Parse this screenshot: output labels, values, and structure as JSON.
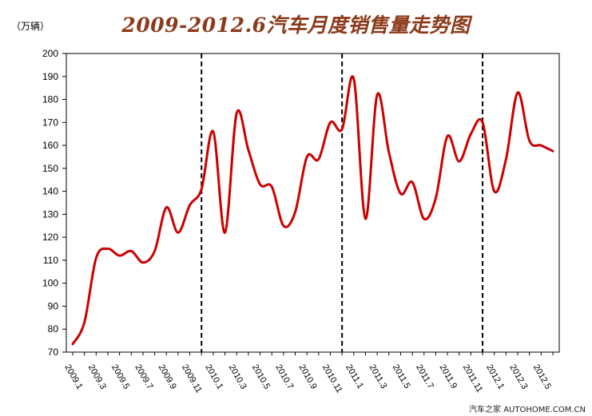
{
  "header": {
    "title": "2009-2012.6汽车月度销售量走势图",
    "unit": "（万辆）"
  },
  "footer": {
    "watermark": "汽车之家 AUTOHOME.COM.CN"
  },
  "chart_data": {
    "type": "line",
    "title": "2009-2012.6汽车月度销售量走势图",
    "ylabel": "（万辆）",
    "xlabel": "",
    "ylim": [
      70,
      200
    ],
    "yticks": [
      70,
      80,
      90,
      100,
      110,
      120,
      130,
      140,
      150,
      160,
      170,
      180,
      190,
      200
    ],
    "grid": false,
    "line_color": "#cc0000",
    "x": [
      "2009.1",
      "2009.2",
      "2009.3",
      "2009.4",
      "2009.5",
      "2009.6",
      "2009.7",
      "2009.8",
      "2009.9",
      "2009.10",
      "2009.11",
      "2009.12",
      "2010.1",
      "2010.2",
      "2010.3",
      "2010.4",
      "2010.5",
      "2010.6",
      "2010.7",
      "2010.8",
      "2010.9",
      "2010.10",
      "2010.11",
      "2010.12",
      "2011.1",
      "2011.2",
      "2011.3",
      "2011.4",
      "2011.5",
      "2011.6",
      "2011.7",
      "2011.8",
      "2011.9",
      "2011.10",
      "2011.11",
      "2011.12",
      "2012.1",
      "2012.2",
      "2012.3",
      "2012.4",
      "2012.5",
      "2012.6"
    ],
    "x_tick_labels": [
      "2009.1",
      "2009.3",
      "2009.5",
      "2009.7",
      "2009.9",
      "2009.11",
      "2010.1",
      "2010.3",
      "2010.5",
      "2010.7",
      "2010.9",
      "2010.11",
      "2011.1",
      "2011.3",
      "2011.5",
      "2011.7",
      "2011.9",
      "2011.11",
      "2012.1",
      "2012.3",
      "2012.5"
    ],
    "series": [
      {
        "values": [
          73.5,
          83,
          111,
          115,
          112,
          114,
          109,
          114,
          133,
          122,
          134,
          141,
          166,
          122,
          174,
          158,
          143,
          142,
          125,
          131,
          155,
          154,
          170,
          167,
          189,
          128,
          182,
          157,
          139,
          144,
          128,
          137,
          164,
          153,
          165,
          170,
          140,
          154,
          183,
          162,
          160,
          157.5
        ]
      }
    ],
    "vertical_markers": [
      "2009.12",
      "2010.12",
      "2011.12"
    ]
  }
}
